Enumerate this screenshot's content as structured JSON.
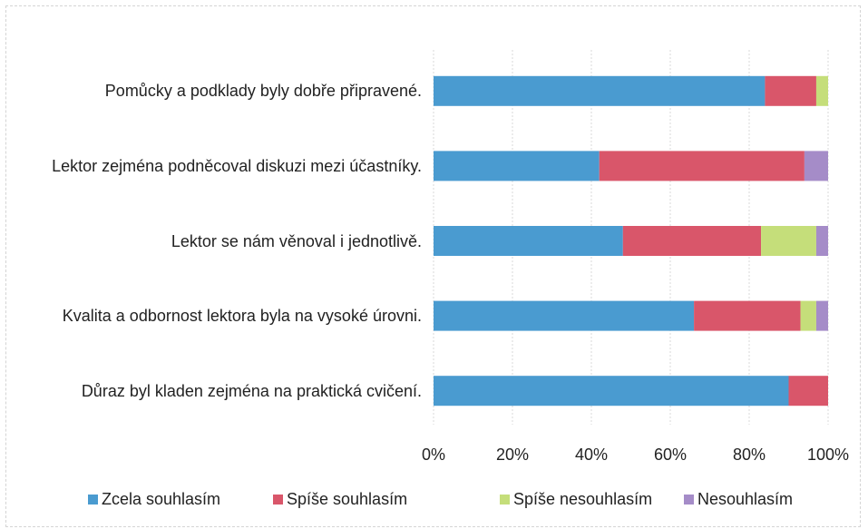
{
  "chart_data": {
    "type": "stacked_barh",
    "categories": [
      "Pomůcky a podklady byly dobře připravené.",
      "Lektor zejména podněcoval diskuzi mezi účastníky.",
      "Lektor se nám věnoval i jednotlivě.",
      "Kvalita a odbornost lektora byla na vysoké úrovni.",
      "Důraz byl kladen zejména na praktická cvičení."
    ],
    "series": [
      {
        "name": "Zcela souhlasím",
        "color": "#4a9bd0",
        "values": [
          84,
          42,
          48,
          66,
          90
        ]
      },
      {
        "name": "Spíše souhlasím",
        "color": "#d9566a",
        "values": [
          13,
          52,
          35,
          27,
          10
        ]
      },
      {
        "name": "Spíše nesouhlasím",
        "color": "#c5de7a",
        "values": [
          3,
          0,
          14,
          4,
          0
        ]
      },
      {
        "name": "Nesouhlasím",
        "color": "#a58cc8",
        "values": [
          0,
          6,
          3,
          3,
          0
        ]
      }
    ],
    "xlim": [
      0,
      100
    ],
    "xticks": [
      {
        "value": 0,
        "label": "0%"
      },
      {
        "value": 20,
        "label": "20%"
      },
      {
        "value": 40,
        "label": "40%"
      },
      {
        "value": 60,
        "label": "60%"
      },
      {
        "value": 80,
        "label": "80%"
      },
      {
        "value": 100,
        "label": "100%"
      }
    ],
    "grid": true
  }
}
